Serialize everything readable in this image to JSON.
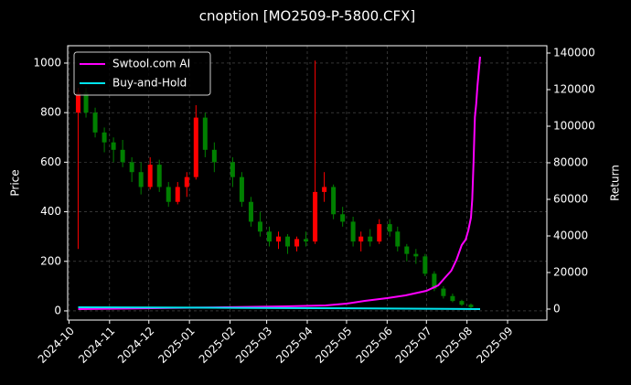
{
  "chart_data": {
    "type": "candlestick",
    "title": "cnoption [MO2509-P-5800.CFX]",
    "ylabel": "Price",
    "y2label": "Return",
    "x": [
      "2024-10-08",
      "2024-10-14",
      "2024-10-21",
      "2024-10-28",
      "2024-11-04",
      "2024-11-11",
      "2024-11-18",
      "2024-11-25",
      "2024-12-02",
      "2024-12-09",
      "2024-12-16",
      "2024-12-23",
      "2024-12-30",
      "2025-01-06",
      "2025-01-13",
      "2025-01-20",
      "2025-02-03",
      "2025-02-10",
      "2025-02-17",
      "2025-02-24",
      "2025-03-03",
      "2025-03-10",
      "2025-03-17",
      "2025-03-24",
      "2025-03-31",
      "2025-04-07",
      "2025-04-14",
      "2025-04-21",
      "2025-04-28",
      "2025-05-06",
      "2025-05-12",
      "2025-05-19",
      "2025-05-26",
      "2025-06-03",
      "2025-06-09",
      "2025-06-16",
      "2025-06-23",
      "2025-06-30",
      "2025-07-07",
      "2025-07-14",
      "2025-07-21",
      "2025-07-28",
      "2025-08-04"
    ],
    "open": [
      800,
      880,
      800,
      720,
      680,
      650,
      600,
      560,
      500,
      590,
      500,
      440,
      500,
      540,
      780,
      650,
      600,
      540,
      440,
      360,
      320,
      280,
      300,
      260,
      290,
      280,
      480,
      500,
      390,
      360,
      280,
      300,
      280,
      350,
      320,
      260,
      230,
      220,
      150,
      90,
      60,
      40,
      25
    ],
    "high": [
      900,
      900,
      820,
      740,
      700,
      690,
      620,
      600,
      620,
      610,
      520,
      520,
      560,
      830,
      800,
      680,
      620,
      560,
      460,
      400,
      340,
      320,
      310,
      300,
      320,
      1010,
      560,
      510,
      420,
      380,
      320,
      330,
      370,
      370,
      340,
      270,
      250,
      230,
      160,
      100,
      70,
      45,
      30
    ],
    "low": [
      250,
      780,
      700,
      640,
      600,
      580,
      520,
      470,
      490,
      480,
      420,
      430,
      460,
      530,
      620,
      560,
      500,
      420,
      340,
      300,
      260,
      250,
      230,
      240,
      260,
      270,
      440,
      370,
      340,
      260,
      240,
      260,
      270,
      300,
      240,
      200,
      190,
      140,
      80,
      50,
      35,
      20,
      10
    ],
    "close": [
      880,
      800,
      720,
      680,
      650,
      600,
      560,
      500,
      590,
      500,
      440,
      500,
      540,
      780,
      650,
      600,
      540,
      440,
      360,
      320,
      280,
      300,
      260,
      290,
      280,
      480,
      500,
      390,
      360,
      280,
      300,
      280,
      350,
      320,
      260,
      230,
      220,
      150,
      90,
      60,
      40,
      25,
      15
    ],
    "up_color": "#ff0000",
    "down_color": "#008000",
    "series": [
      {
        "name": "Swtool.com AI",
        "color": "#ff00ff",
        "axis": "y2",
        "x": [
          "2024-10-08",
          "2024-11-15",
          "2024-12-15",
          "2025-01-15",
          "2025-02-15",
          "2025-03-15",
          "2025-04-15",
          "2025-05-01",
          "2025-05-15",
          "2025-06-01",
          "2025-06-15",
          "2025-07-01",
          "2025-07-10",
          "2025-07-15",
          "2025-07-20",
          "2025-07-24",
          "2025-07-28",
          "2025-07-31",
          "2025-08-02",
          "2025-08-04",
          "2025-08-05",
          "2025-08-06",
          "2025-08-07",
          "2025-08-08",
          "2025-08-09",
          "2025-08-11"
        ],
        "values": [
          0,
          300,
          600,
          900,
          1200,
          1500,
          2000,
          3000,
          4500,
          6000,
          7500,
          10000,
          13000,
          17000,
          21000,
          27000,
          35000,
          38000,
          43000,
          50000,
          60000,
          80000,
          105000,
          112000,
          122000,
          138000
        ]
      },
      {
        "name": "Buy-and-Hold",
        "color": "#00e5ee",
        "axis": "y2",
        "x": [
          "2024-10-08",
          "2025-01-06",
          "2025-04-07",
          "2025-07-01",
          "2025-08-11"
        ],
        "values": [
          1000,
          800,
          500,
          200,
          20
        ]
      }
    ],
    "xlim": [
      "2024-09-30",
      "2025-10-01"
    ],
    "xticks": [
      {
        "value": "2024-10-01",
        "label": "2024-10"
      },
      {
        "value": "2024-11-01",
        "label": "2024-11"
      },
      {
        "value": "2024-12-01",
        "label": "2024-12"
      },
      {
        "value": "2025-01-01",
        "label": "2025-01"
      },
      {
        "value": "2025-02-01",
        "label": "2025-02"
      },
      {
        "value": "2025-03-01",
        "label": "2025-03"
      },
      {
        "value": "2025-04-01",
        "label": "2025-04"
      },
      {
        "value": "2025-05-01",
        "label": "2025-05"
      },
      {
        "value": "2025-06-01",
        "label": "2025-06"
      },
      {
        "value": "2025-07-01",
        "label": "2025-07"
      },
      {
        "value": "2025-08-01",
        "label": "2025-08"
      },
      {
        "value": "2025-09-01",
        "label": "2025-09"
      }
    ],
    "ylim": [
      -37,
      1070
    ],
    "yticks": [
      0,
      200,
      400,
      600,
      800,
      1000
    ],
    "y2lim": [
      -6000,
      144000
    ],
    "y2ticks": [
      0,
      20000,
      40000,
      60000,
      80000,
      100000,
      120000,
      140000
    ],
    "grid": true,
    "legend": "upper left"
  }
}
